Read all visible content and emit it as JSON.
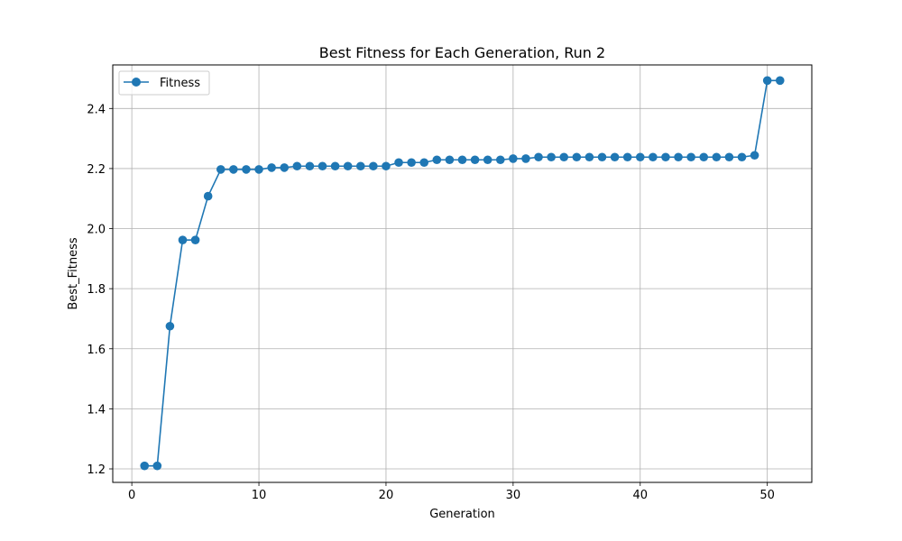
{
  "chart_data": {
    "type": "line",
    "title": "Best Fitness for Each Generation, Run 2",
    "xlabel": "Generation",
    "ylabel": "Best_Fitness",
    "xlim": [
      -1.5,
      53.5
    ],
    "ylim": [
      1.155,
      2.545
    ],
    "xticks": [
      0,
      10,
      20,
      30,
      40,
      50
    ],
    "yticks": [
      1.2,
      1.4,
      1.6,
      1.8,
      2.0,
      2.2,
      2.4
    ],
    "ytick_labels": [
      "1.2",
      "1.4",
      "1.6",
      "1.8",
      "2.0",
      "2.2",
      "2.4"
    ],
    "grid": true,
    "legend_position": "top-left",
    "series": [
      {
        "name": "Fitness",
        "color": "#1f77b4",
        "marker": "circle",
        "x": [
          1,
          2,
          3,
          4,
          5,
          6,
          7,
          8,
          9,
          10,
          11,
          12,
          13,
          14,
          15,
          16,
          17,
          18,
          19,
          20,
          21,
          22,
          23,
          24,
          25,
          26,
          27,
          28,
          29,
          30,
          31,
          32,
          33,
          34,
          35,
          36,
          37,
          38,
          39,
          40,
          41,
          42,
          43,
          44,
          45,
          46,
          47,
          48,
          49,
          50,
          51
        ],
        "y": [
          1.21,
          1.21,
          1.675,
          1.962,
          1.962,
          2.108,
          2.197,
          2.197,
          2.197,
          2.197,
          2.203,
          2.203,
          2.208,
          2.208,
          2.208,
          2.208,
          2.208,
          2.208,
          2.208,
          2.208,
          2.22,
          2.22,
          2.22,
          2.229,
          2.229,
          2.229,
          2.229,
          2.229,
          2.229,
          2.233,
          2.233,
          2.238,
          2.238,
          2.238,
          2.238,
          2.238,
          2.238,
          2.238,
          2.238,
          2.238,
          2.238,
          2.238,
          2.238,
          2.238,
          2.238,
          2.238,
          2.238,
          2.238,
          2.244,
          2.493,
          2.493
        ]
      }
    ]
  }
}
